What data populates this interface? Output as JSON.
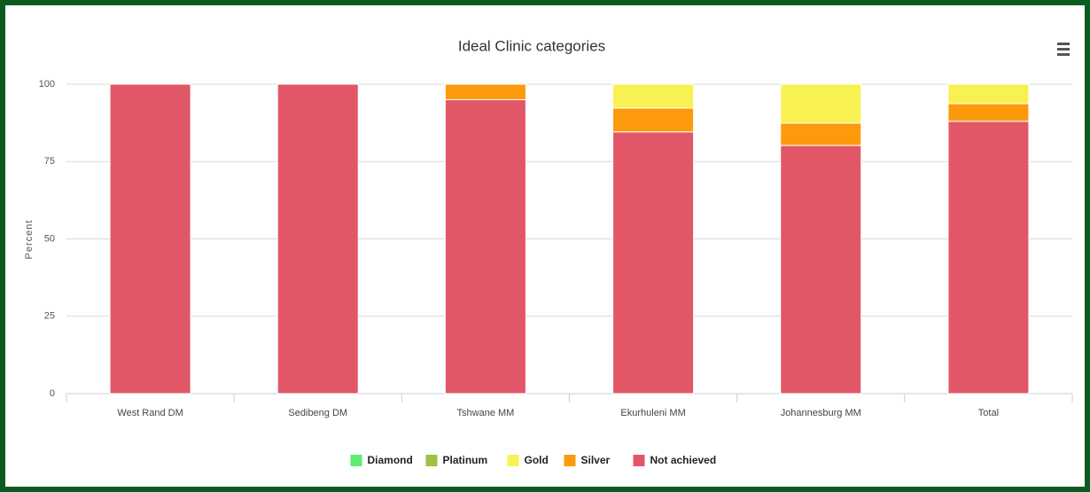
{
  "chart_data": {
    "type": "bar",
    "stacked": true,
    "title": "Ideal Clinic categories",
    "y_label": "Percent",
    "categories": [
      "West Rand DM",
      "Sedibeng DM",
      "Tshwane MM",
      "Ekurhuleni MM",
      "Johannesburg MM",
      "Total"
    ],
    "series": [
      {
        "name": "Diamond",
        "color": "#5ced70",
        "values": [
          0,
          0,
          0,
          0,
          0,
          0
        ]
      },
      {
        "name": "Platinum",
        "color": "#9fc041",
        "values": [
          0,
          0,
          0,
          0,
          0,
          0
        ]
      },
      {
        "name": "Gold",
        "color": "#f8f152",
        "values": [
          0,
          0,
          0,
          7.7,
          12.6,
          6.3
        ]
      },
      {
        "name": "Silver",
        "color": "#fd9a0c",
        "values": [
          0,
          0,
          5,
          7.7,
          7.2,
          5.7
        ]
      },
      {
        "name": "Not achieved",
        "color": "#e25767",
        "values": [
          100,
          100,
          95,
          84.6,
          80.2,
          88
        ]
      }
    ],
    "ylim": [
      0,
      100
    ],
    "yticks": [
      0,
      25,
      50,
      75,
      100
    ],
    "grid": true
  }
}
